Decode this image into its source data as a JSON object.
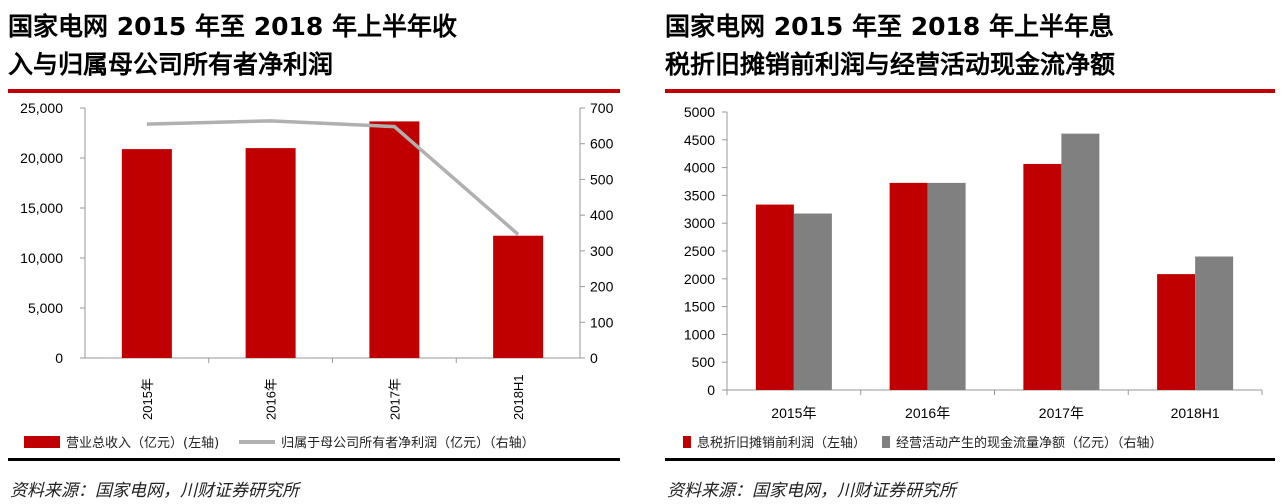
{
  "left": {
    "title_line1": "国家电网 2015 年至 2018 年上半年收",
    "title_line2": "入与归属母公司所有者净利润",
    "source": "资料来源：国家电网，川财证券研究所"
  },
  "right": {
    "title_line1": "国家电网 2015 年至 2018 年上半年息",
    "title_line2": "税折旧摊销前利润与经营活动现金流净额",
    "source": "资料来源：国家电网，川财证券研究所"
  },
  "colors": {
    "red": "#c00000",
    "gray": "#808080",
    "line": "#b0b0b0"
  },
  "chart_data": [
    {
      "type": "bar+line",
      "categories": [
        "2015年",
        "2016年",
        "2017年",
        "2018H1"
      ],
      "series": [
        {
          "name": "营业总收入（亿元）(左轴)",
          "type": "bar",
          "axis": "left",
          "values": [
            20890,
            20990,
            23660,
            12230
          ]
        },
        {
          "name": "归属于母公司所有者净利润（亿元）（右轴）",
          "type": "line",
          "axis": "right",
          "values": [
            655,
            664,
            648,
            346
          ]
        }
      ],
      "yleft": {
        "lim": [
          0,
          25000
        ],
        "ticks": [
          "0",
          "5,000",
          "10,000",
          "15,000",
          "20,000",
          "25,000"
        ]
      },
      "yright": {
        "lim": [
          0,
          700
        ],
        "ticks": [
          "0",
          "100",
          "200",
          "300",
          "400",
          "500",
          "600",
          "700"
        ]
      },
      "legend": "bottom"
    },
    {
      "type": "bar",
      "categories": [
        "2015年",
        "2016年",
        "2017年",
        "2018H1"
      ],
      "series": [
        {
          "name": "息税折旧摊销前利润（左轴）",
          "values": [
            3335,
            3725,
            4066,
            2084
          ]
        },
        {
          "name": "经营活动产生的现金流量净额（亿元）（右轴）",
          "values": [
            3174,
            3725,
            4611,
            2401
          ]
        }
      ],
      "ylim": [
        0,
        5000
      ],
      "ticks": [
        "0",
        "500",
        "1000",
        "1500",
        "2000",
        "2500",
        "3000",
        "3500",
        "4000",
        "4500",
        "5000"
      ],
      "legend": "bottom"
    }
  ]
}
